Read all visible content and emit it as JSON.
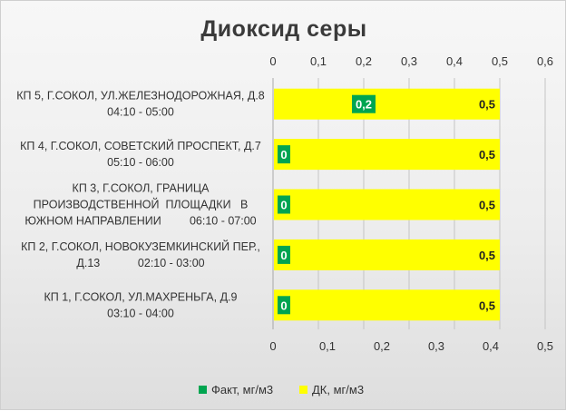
{
  "chart_data": {
    "type": "bar",
    "orientation": "horizontal",
    "title": "Диоксид  серы",
    "categories": [
      [
        "КП 5, Г.СОКОЛ, УЛ.ЖЕЛЕЗНОДОРОЖНАЯ, Д.8",
        "04:10 - 05:00"
      ],
      [
        "КП 4, Г.СОКОЛ, СОВЕТСКИЙ ПРОСПЕКТ, Д.7",
        "05:10 - 06:00"
      ],
      [
        "КП 3, Г.СОКОЛ, ГРАНИЦА",
        "ПРОИЗВОДСТВЕННОЙ  ПЛОЩАДКИ   В",
        "ЮЖНОМ НАПРАВЛЕНИИ         06:10 - 07:00"
      ],
      [
        "КП 2, Г.СОКОЛ, НОВОКУЗЕМКИНСКИЙ ПЕР.,",
        "Д.13            02:10 - 03:00"
      ],
      [
        "КП 1, Г.СОКОЛ, УЛ.МАХРЕНЬГА, Д.9",
        "03:10 - 04:00"
      ]
    ],
    "series": [
      {
        "name": "Факт, мг/м3",
        "axis": "secondary",
        "color": "#00a550",
        "values": [
          0.2,
          0,
          0,
          0,
          0
        ],
        "labels": [
          "0,2",
          "0",
          "0",
          "0",
          "0"
        ]
      },
      {
        "name": "ДК, мг/м3",
        "axis": "primary",
        "color": "#ffff00",
        "values": [
          0.5,
          0.5,
          0.5,
          0.5,
          0.5
        ],
        "labels": [
          "0,5",
          "0,5",
          "0,5",
          "0,5",
          "0,5"
        ]
      }
    ],
    "primary_axis": {
      "position": "bottom",
      "range": [
        0,
        0.5
      ],
      "ticks": [
        "0",
        "0,1",
        "0,2",
        "0,3",
        "0,4",
        "0,5"
      ]
    },
    "secondary_axis": {
      "position": "top",
      "range": [
        0,
        0.6
      ],
      "ticks": [
        "0",
        "0,1",
        "0,2",
        "0,3",
        "0,4",
        "0,5",
        "0,6"
      ]
    },
    "grid": true,
    "legend_position": "bottom"
  }
}
